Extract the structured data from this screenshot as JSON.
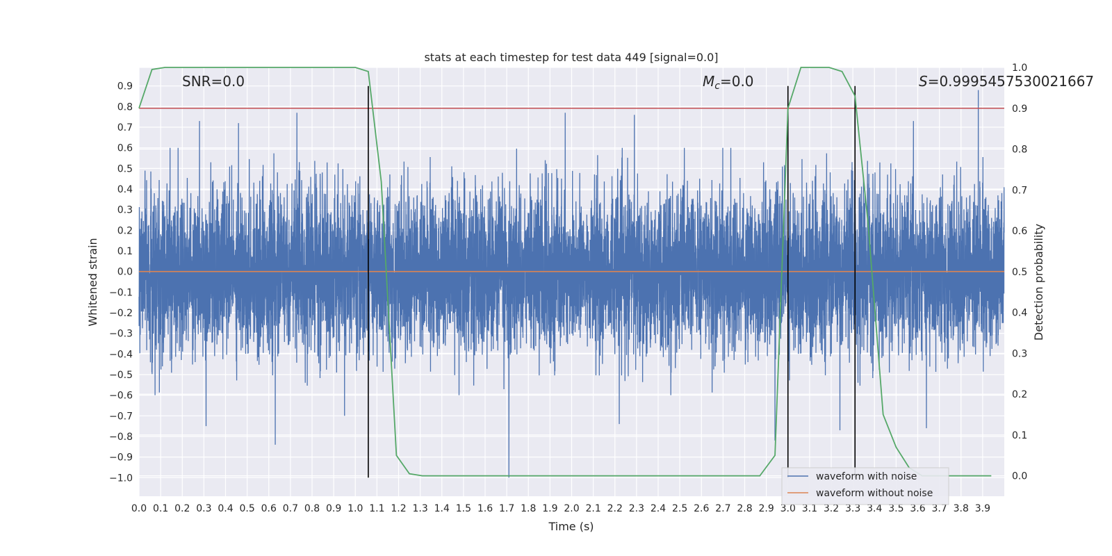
{
  "chart_data": {
    "type": "line",
    "title": "stats at each timestep for test data 449 [signal=0.0]",
    "xlabel": "Time (s)",
    "ylabel": "Whitened strain",
    "y2label": "Detection probability",
    "xlim": [
      0.0,
      4.0
    ],
    "ylim": [
      -1.09,
      0.99
    ],
    "y2lim": [
      -0.05,
      1.0
    ],
    "x_ticks": [
      "0.0",
      "0.1",
      "0.2",
      "0.3",
      "0.4",
      "0.5",
      "0.6",
      "0.7",
      "0.8",
      "0.9",
      "1.0",
      "1.1",
      "1.2",
      "1.3",
      "1.4",
      "1.5",
      "1.6",
      "1.7",
      "1.8",
      "1.9",
      "2.0",
      "2.1",
      "2.2",
      "2.3",
      "2.4",
      "2.5",
      "2.6",
      "2.7",
      "2.8",
      "2.9",
      "3.0",
      "3.1",
      "3.2",
      "3.3",
      "3.4",
      "3.5",
      "3.6",
      "3.7",
      "3.8",
      "3.9"
    ],
    "y_ticks": [
      "0.9",
      "0.8",
      "0.7",
      "0.6",
      "0.5",
      "0.4",
      "0.3",
      "0.2",
      "0.1",
      "0.0",
      "−0.1",
      "−0.2",
      "−0.3",
      "−0.4",
      "−0.5",
      "−0.6",
      "−0.7",
      "−0.8",
      "−0.9",
      "−1.0"
    ],
    "y2_ticks": [
      "1.0",
      "0.9",
      "0.8",
      "0.7",
      "0.6",
      "0.5",
      "0.4",
      "0.3",
      "0.2",
      "0.1",
      "0.0"
    ],
    "grid": true,
    "legend_position": "lower-right",
    "annotations": {
      "snr": "SNR=0.0",
      "mc_symbol": "M",
      "mc_sub": "c",
      "mc_value": "=0.0",
      "s_symbol": "S",
      "s_value": "=0.9995457530021667"
    },
    "series": [
      {
        "name": "waveform with noise",
        "color": "#4c72b0",
        "axis": "left",
        "kind": "noise",
        "sample_rate": 2048,
        "amplitude_envelope": [
          -0.6,
          0.6
        ],
        "spikes": [
          {
            "x": 0.28,
            "y": 0.73
          },
          {
            "x": 0.31,
            "y": -0.75
          },
          {
            "x": 0.46,
            "y": 0.72
          },
          {
            "x": 0.63,
            "y": -0.84
          },
          {
            "x": 0.73,
            "y": 0.77
          },
          {
            "x": 0.95,
            "y": -0.7
          },
          {
            "x": 1.71,
            "y": -1.0
          },
          {
            "x": 1.97,
            "y": 0.77
          },
          {
            "x": 2.22,
            "y": -0.74
          },
          {
            "x": 2.29,
            "y": 0.76
          },
          {
            "x": 2.94,
            "y": -0.82
          },
          {
            "x": 3.24,
            "y": -0.77
          },
          {
            "x": 3.58,
            "y": 0.73
          },
          {
            "x": 3.88,
            "y": 0.88
          },
          {
            "x": 3.64,
            "y": -0.76
          }
        ]
      },
      {
        "name": "waveform without noise",
        "color": "#dd8452",
        "axis": "left",
        "x": [
          0.0,
          4.0
        ],
        "y": [
          0.0,
          0.0
        ]
      },
      {
        "name": "",
        "color": "#55a868",
        "axis": "right",
        "x": [
          0.0,
          0.06,
          0.12,
          0.19,
          0.25,
          0.31,
          0.37,
          0.44,
          0.5,
          0.56,
          0.62,
          0.69,
          0.75,
          0.81,
          0.87,
          0.94,
          1.0,
          1.06,
          1.12,
          1.19,
          1.25,
          1.31,
          1.37,
          1.44,
          1.5,
          1.56,
          1.62,
          1.69,
          1.75,
          1.81,
          1.87,
          1.94,
          2.0,
          2.06,
          2.12,
          2.19,
          2.25,
          2.31,
          2.37,
          2.44,
          2.5,
          2.56,
          2.62,
          2.69,
          2.75,
          2.81,
          2.87,
          2.94,
          3.0,
          3.06,
          3.12,
          3.19,
          3.25,
          3.31,
          3.37,
          3.44,
          3.5,
          3.56,
          3.62,
          3.69,
          3.75,
          3.81,
          3.87,
          3.94
        ],
        "y": [
          0.9,
          0.995,
          1.0,
          1.0,
          1.0,
          1.0,
          1.0,
          1.0,
          1.0,
          1.0,
          1.0,
          1.0,
          1.0,
          1.0,
          1.0,
          1.0,
          1.0,
          0.99,
          0.72,
          0.05,
          0.005,
          0.0,
          0.0,
          0.0,
          0.0,
          0.0,
          0.0,
          0.0,
          0.0,
          0.0,
          0.0,
          0.0,
          0.0,
          0.0,
          0.0,
          0.0,
          0.0,
          0.0,
          0.0,
          0.0,
          0.0,
          0.0,
          0.0,
          0.0,
          0.0,
          0.0,
          0.0,
          0.05,
          0.9,
          1.0,
          1.0,
          1.0,
          0.99,
          0.93,
          0.62,
          0.15,
          0.07,
          0.02,
          0.0,
          0.0,
          0.0,
          0.0,
          0.0,
          0.0
        ]
      },
      {
        "name": "",
        "color": "#c44e52",
        "axis": "right",
        "x": [
          0.0,
          4.0
        ],
        "y": [
          0.9,
          0.9
        ]
      }
    ],
    "vertical_lines": [
      1.06,
      3.0,
      3.31
    ],
    "vertical_line_color": "#000000",
    "vertical_line_range": [
      -1.0,
      0.9
    ]
  }
}
